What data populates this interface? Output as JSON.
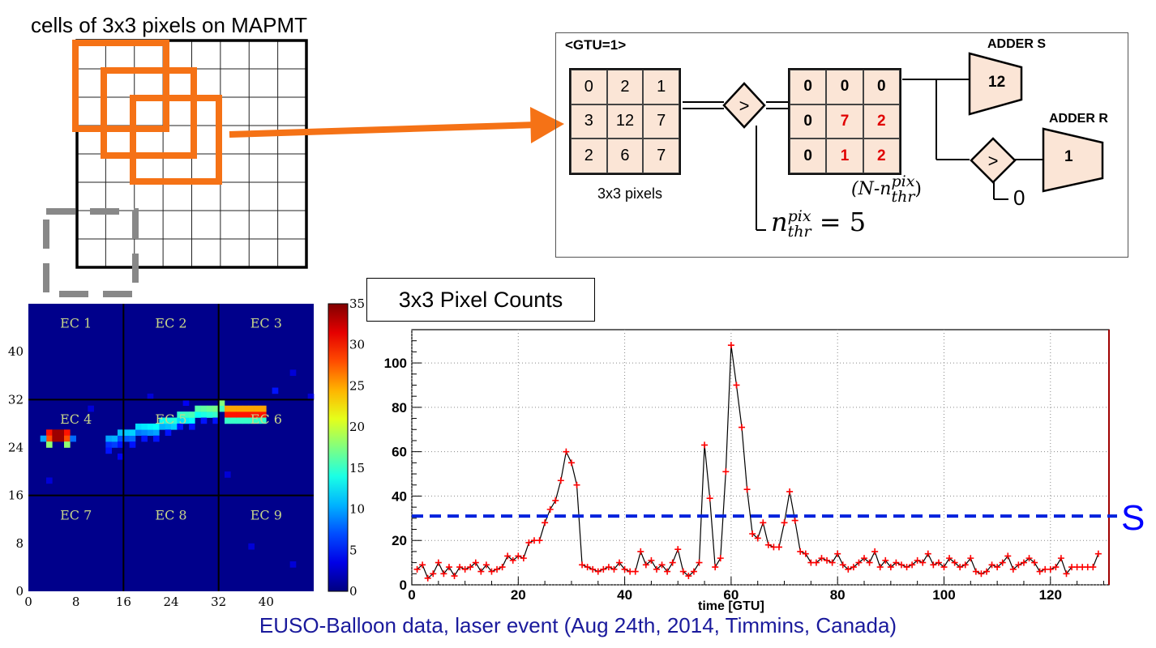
{
  "top_left": {
    "title": "cells of 3x3 pixels on MAPMT"
  },
  "logic": {
    "gtu_label": "<GTU=1>",
    "input_grid": [
      "0",
      "2",
      "1",
      "3",
      "12",
      "7",
      "2",
      "6",
      "7"
    ],
    "input_label": "3x3 pixels",
    "comparator_symbol": ">",
    "output_grid": [
      "0",
      "0",
      "0",
      "0",
      "7",
      "2",
      "0",
      "1",
      "2"
    ],
    "output_red_cells": [
      4,
      5,
      7,
      8
    ],
    "threshold": {
      "n": "n",
      "sup": "pix",
      "sub": "thr",
      "rhs": "= 5"
    },
    "difference": {
      "open": "(N-",
      "n": "n",
      "sup": "pix",
      "sub": "thr",
      "close": ")"
    },
    "adder_s": {
      "label": "ADDER S",
      "value": "12"
    },
    "adder_r": {
      "label": "ADDER R",
      "value": "1"
    },
    "zero_label": "0"
  },
  "heatmap": {
    "ec_labels": [
      "EC 1",
      "EC 2",
      "EC 3",
      "EC 4",
      "EC 5",
      "EC 6",
      "EC 7",
      "EC 8",
      "EC 9"
    ],
    "y_ticks": [
      "40",
      "32",
      "24",
      "16",
      "8",
      "0"
    ],
    "x_ticks": [
      "0",
      "8",
      "16",
      "24",
      "32",
      "40"
    ],
    "colorbar_ticks": [
      "35",
      "30",
      "25",
      "20",
      "15",
      "10",
      "5",
      "0"
    ],
    "colorbar_range": [
      0,
      35
    ]
  },
  "chart_data": {
    "type": "line",
    "title": "3x3 Pixel Counts",
    "xlabel": "time [GTU]",
    "ylabel": "",
    "xlim": [
      0,
      131
    ],
    "ylim": [
      0,
      115
    ],
    "x_ticks": [
      0,
      20,
      40,
      60,
      80,
      100,
      120
    ],
    "y_ticks": [
      0,
      20,
      40,
      60,
      80,
      100
    ],
    "grid": true,
    "threshold_line": {
      "value": 31,
      "label": "S"
    },
    "x": [
      1,
      2,
      3,
      4,
      5,
      6,
      7,
      8,
      9,
      10,
      11,
      12,
      13,
      14,
      15,
      16,
      17,
      18,
      19,
      20,
      21,
      22,
      23,
      24,
      25,
      26,
      27,
      28,
      29,
      30,
      31,
      32,
      33,
      34,
      35,
      36,
      37,
      38,
      39,
      40,
      41,
      42,
      43,
      44,
      45,
      46,
      47,
      48,
      49,
      50,
      51,
      52,
      53,
      54,
      55,
      56,
      57,
      58,
      59,
      60,
      61,
      62,
      63,
      64,
      65,
      66,
      67,
      68,
      69,
      70,
      71,
      72,
      73,
      74,
      75,
      76,
      77,
      78,
      79,
      80,
      81,
      82,
      83,
      84,
      85,
      86,
      87,
      88,
      89,
      90,
      91,
      92,
      93,
      94,
      95,
      96,
      97,
      98,
      99,
      100,
      101,
      102,
      103,
      104,
      105,
      106,
      107,
      108,
      109,
      110,
      111,
      112,
      113,
      114,
      115,
      116,
      117,
      118,
      119,
      120,
      121,
      122,
      123,
      124,
      125,
      126,
      127,
      128,
      129
    ],
    "values": [
      7,
      9,
      3,
      5,
      10,
      5,
      8,
      4,
      8,
      7,
      8,
      10,
      6,
      9,
      6,
      7,
      8,
      13,
      11,
      13,
      12,
      19,
      20,
      20,
      28,
      34,
      38,
      47,
      60,
      55,
      45,
      9,
      8,
      7,
      6,
      7,
      8,
      7,
      10,
      7,
      6,
      6,
      15,
      9,
      11,
      7,
      9,
      6,
      10,
      16,
      6,
      4,
      6,
      10,
      63,
      39,
      8,
      12,
      51,
      108,
      90,
      71,
      43,
      23,
      21,
      28,
      18,
      17,
      17,
      28,
      42,
      29,
      15,
      14,
      10,
      10,
      12,
      11,
      10,
      14,
      9,
      7,
      8,
      10,
      12,
      10,
      15,
      8,
      11,
      8,
      10,
      9,
      8,
      9,
      11,
      10,
      14,
      9,
      10,
      8,
      12,
      10,
      8,
      9,
      12,
      6,
      5,
      6,
      9,
      8,
      10,
      13,
      7,
      9,
      10,
      12,
      10,
      6,
      7,
      7,
      8,
      12,
      5,
      8,
      8,
      8,
      8,
      8,
      14
    ]
  },
  "caption": "EUSO-Balloon data, laser event (Aug 24th, 2014, Timmins, Canada)",
  "colors": {
    "orange": "#f57216",
    "blue_line": "#0022dd",
    "marker": "#ff0000",
    "caption": "#1a1a9c",
    "cell_fill": "#fbe5d6"
  }
}
